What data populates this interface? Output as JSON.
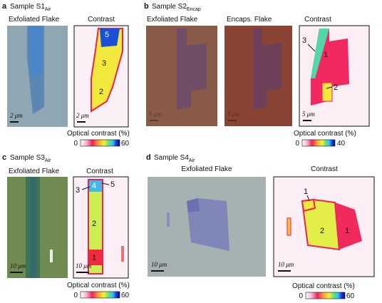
{
  "panels": [
    {
      "letter": "a",
      "title": "Sample S1",
      "subscript": "Air",
      "images": [
        {
          "label": "Exfoliated Flake",
          "scale_bar": "2 μm"
        },
        {
          "label": "Contrast",
          "scale_bar": "2 μm",
          "regions": [
            "5",
            "3",
            "2"
          ]
        }
      ],
      "colorbar": {
        "label": "Optical contrast (%)",
        "min": 0,
        "max": 60
      }
    },
    {
      "letter": "b",
      "title": "Sample S2",
      "subscript": "Encap",
      "images": [
        {
          "label": "Exfoliated Flake",
          "scale_bar": "5 μm"
        },
        {
          "label": "Encaps. Flake",
          "scale_bar": "5 μm"
        },
        {
          "label": "Contrast",
          "scale_bar": "5 μm",
          "regions": [
            "3",
            "1",
            "2"
          ]
        }
      ],
      "colorbar": {
        "label": "Optical contrast (%)",
        "min": 0,
        "max": 40
      }
    },
    {
      "letter": "c",
      "title": "Sample S3",
      "subscript": "Air",
      "images": [
        {
          "label": "Exfoliated Flake",
          "scale_bar": "10 μm"
        },
        {
          "label": "Contrast",
          "scale_bar": "10 μm",
          "regions": [
            "3",
            "4",
            "5",
            "2",
            "1"
          ]
        }
      ],
      "colorbar": {
        "label": "Optical contrast (%)",
        "min": 0,
        "max": 60
      }
    },
    {
      "letter": "d",
      "title": "Sample S4",
      "subscript": "Air",
      "images": [
        {
          "label": "Exfoliated Flake",
          "scale_bar": "10 μm"
        },
        {
          "label": "Contrast",
          "scale_bar": "10 μm",
          "regions": [
            "1",
            "2",
            "1"
          ]
        }
      ],
      "colorbar": {
        "label": "Optical contrast (%)",
        "min": 0,
        "max": 60
      }
    }
  ]
}
